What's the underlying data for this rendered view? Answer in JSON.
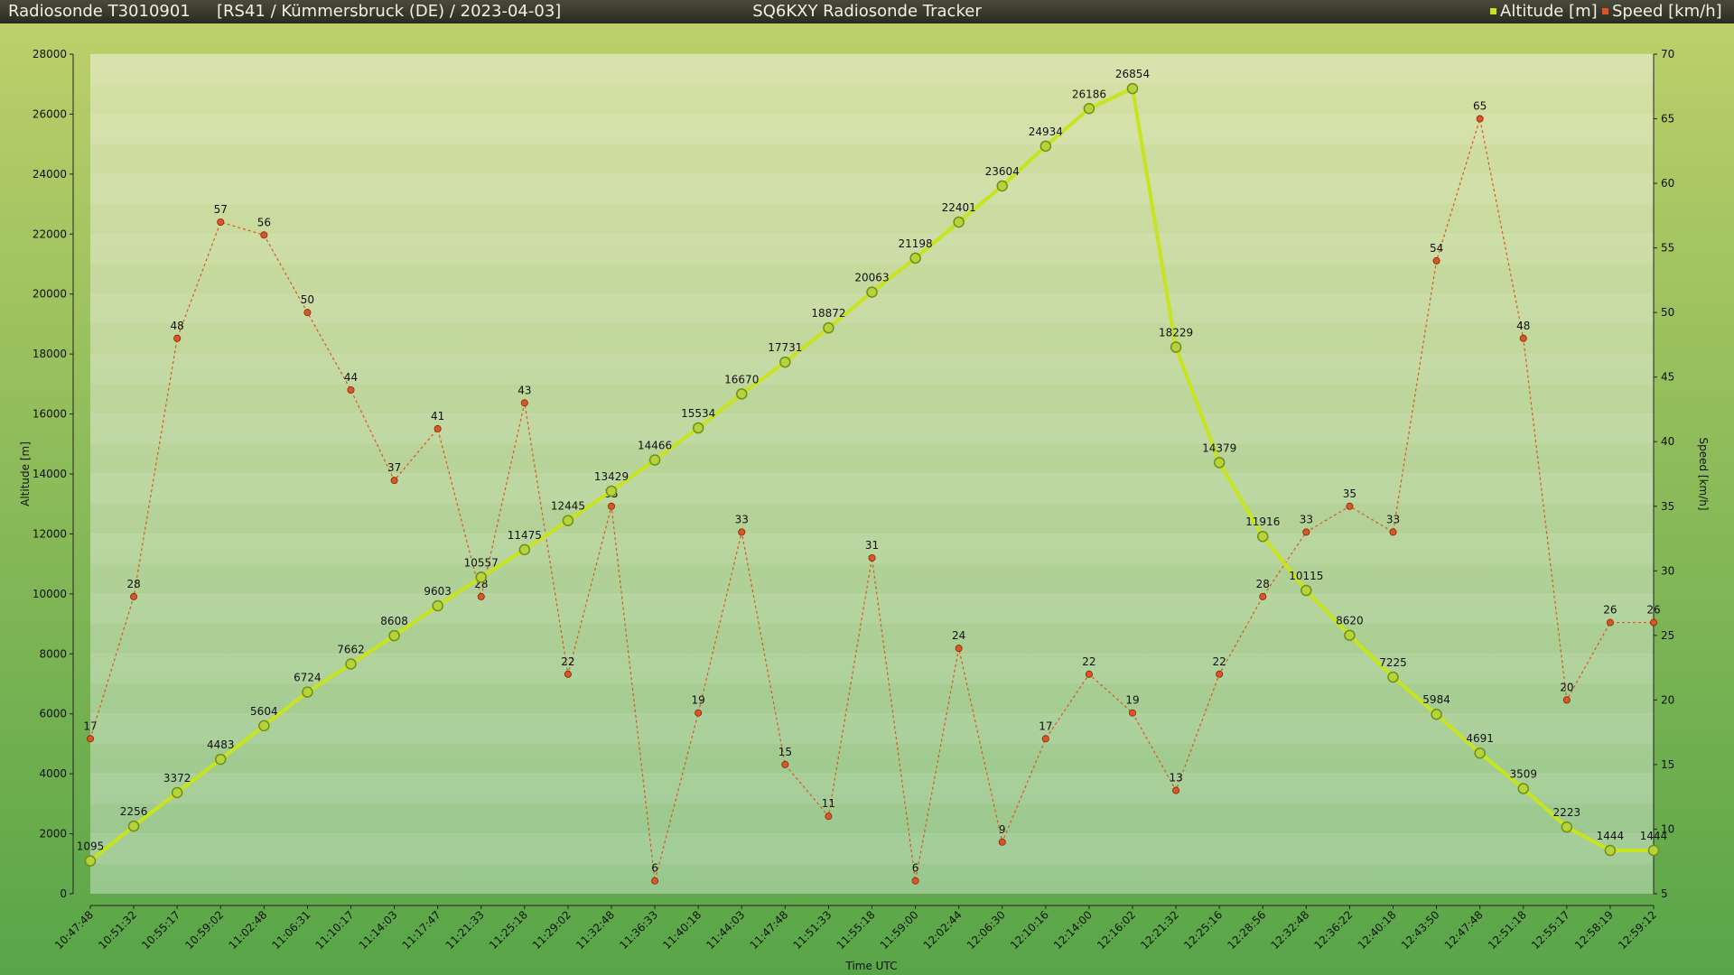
{
  "header": {
    "sonde": "Radiosonde T3010901",
    "info": "[RS41 / Kümmersbruck (DE) / 2023-04-03]",
    "app_title": "SQ6KXY Radiosonde Tracker"
  },
  "colors": {
    "altitude": "#c8e41e",
    "speed": "#dd5522"
  },
  "chart_data": {
    "type": "line",
    "title": "",
    "xlabel": "Time UTC",
    "ylabel": "Altitude [m]",
    "y2label": "Speed [km/h]",
    "ylim": [
      0,
      28000
    ],
    "yticks": [
      0,
      2000,
      4000,
      6000,
      8000,
      10000,
      12000,
      14000,
      16000,
      18000,
      20000,
      22000,
      24000,
      26000,
      28000
    ],
    "y2lim": [
      5,
      70
    ],
    "y2ticks": [
      5,
      10,
      15,
      20,
      25,
      30,
      35,
      40,
      45,
      50,
      55,
      60,
      65,
      70
    ],
    "legend_position": "top-right",
    "x": [
      "10:47:48",
      "10:51:32",
      "10:55:17",
      "10:59:02",
      "11:02:48",
      "11:06:31",
      "11:10:17",
      "11:14:03",
      "11:17:47",
      "11:21:33",
      "11:25:18",
      "11:29:02",
      "11:32:48",
      "11:36:33",
      "11:40:18",
      "11:44:03",
      "11:47:48",
      "11:51:33",
      "11:55:18",
      "11:59:00",
      "12:02:44",
      "12:06:30",
      "12:10:16",
      "12:14:00",
      "12:16:02",
      "12:21:32",
      "12:25:16",
      "12:28:56",
      "12:32:48",
      "12:36:22",
      "12:40:18",
      "12:43:50",
      "12:47:48",
      "12:51:18",
      "12:55:17",
      "12:58:19",
      "12:59:12"
    ],
    "series": [
      {
        "name": "Altitude [m]",
        "axis": "left",
        "values": [
          1095,
          2256,
          3372,
          4483,
          5604,
          6724,
          7662,
          8608,
          9603,
          10557,
          11475,
          12445,
          13429,
          14466,
          15534,
          16670,
          17731,
          18872,
          20063,
          21198,
          22401,
          23604,
          24934,
          26186,
          26854,
          18229,
          14379,
          11916,
          10115,
          8620,
          7225,
          5984,
          4691,
          3509,
          2223,
          1444,
          1444
        ]
      },
      {
        "name": "Speed [km/h]",
        "axis": "right",
        "values": [
          17,
          28,
          48,
          57,
          56,
          50,
          44,
          37,
          41,
          28,
          43,
          22,
          35,
          6,
          19,
          33,
          15,
          11,
          31,
          6,
          24,
          9,
          17,
          22,
          19,
          13,
          22,
          28,
          33,
          35,
          33,
          54,
          65,
          48,
          20,
          26,
          26
        ]
      }
    ]
  }
}
